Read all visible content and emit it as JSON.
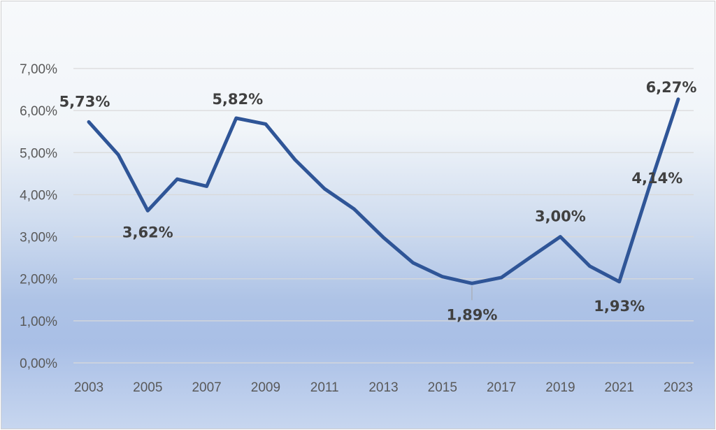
{
  "chart_data": {
    "type": "line",
    "x": [
      2003,
      2004,
      2005,
      2006,
      2007,
      2008,
      2009,
      2010,
      2011,
      2012,
      2013,
      2014,
      2015,
      2016,
      2017,
      2018,
      2019,
      2020,
      2021,
      2022,
      2023
    ],
    "series": [
      {
        "values": [
          5.73,
          4.95,
          3.62,
          4.37,
          4.2,
          5.82,
          5.68,
          4.83,
          4.14,
          3.66,
          2.98,
          2.38,
          2.05,
          1.89,
          2.03,
          2.52,
          3.0,
          2.3,
          1.93,
          4.14,
          6.27
        ]
      }
    ],
    "x_tick_labels": [
      "2003",
      "2005",
      "2007",
      "2009",
      "2011",
      "2013",
      "2015",
      "2017",
      "2019",
      "2021",
      "2023"
    ],
    "y_tick_labels": [
      "0,00%",
      "1,00%",
      "2,00%",
      "3,00%",
      "4,00%",
      "5,00%",
      "6,00%",
      "7,00%"
    ],
    "ylim": [
      0,
      7
    ],
    "grid": "horizontal",
    "line_color": "#2f5597",
    "data_labels": [
      {
        "x": 2003,
        "text": "5,73%"
      },
      {
        "x": 2005,
        "text": "3,62%"
      },
      {
        "x": 2008,
        "text": "5,82%"
      },
      {
        "x": 2016,
        "text": "1,89%"
      },
      {
        "x": 2019,
        "text": "3,00%"
      },
      {
        "x": 2021,
        "text": "1,93%"
      },
      {
        "x": 2022,
        "text": "4,14%"
      },
      {
        "x": 2023,
        "text": "6,27%"
      }
    ]
  }
}
